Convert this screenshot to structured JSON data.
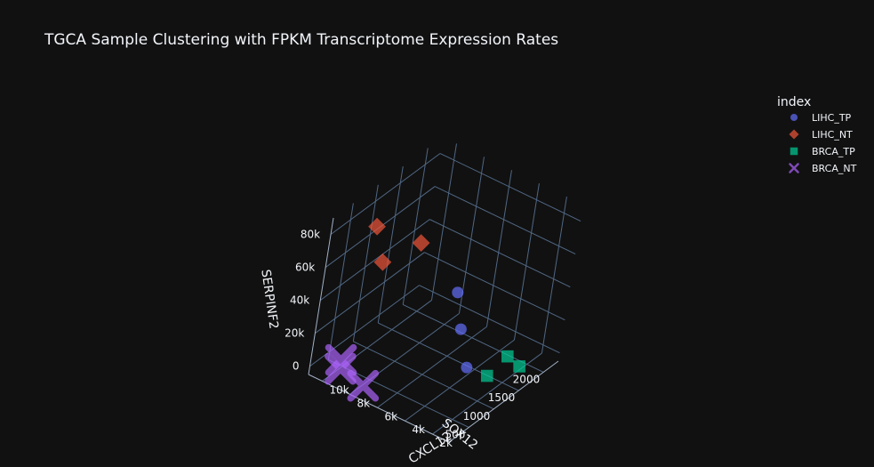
{
  "chart_data": {
    "type": "scatter3d",
    "title": "TGCA Sample Clustering with FPKM Transcriptome Expression Rates",
    "axes": {
      "x": {
        "label": "CXCL12",
        "ticks": [
          2000,
          4000,
          6000,
          8000,
          10000
        ],
        "tick_labels": [
          "2k",
          "4k",
          "6k",
          "8k",
          "10k"
        ],
        "range": [
          800,
          11000
        ]
      },
      "y": {
        "label": "SOX12",
        "ticks": [
          500,
          1000,
          1500,
          2000
        ],
        "tick_labels": [
          "500",
          "1000",
          "1500",
          "2000"
        ],
        "range": [
          100,
          2300
        ]
      },
      "z": {
        "label": "SERPINF2",
        "ticks": [
          0,
          20000,
          40000,
          60000,
          80000
        ],
        "tick_labels": [
          "0",
          "20k",
          "40k",
          "60k",
          "80k"
        ],
        "range": [
          -5000,
          90000
        ]
      }
    },
    "legend": {
      "title": "index",
      "placement": "top-right"
    },
    "series": [
      {
        "name": "LIHC_TP",
        "symbol": "circle",
        "color": "#636efa",
        "points": [
          {
            "x": 1000,
            "y": 300,
            "z": 35000
          },
          {
            "x": 1800,
            "y": 300,
            "z": 55000
          },
          {
            "x": 3000,
            "y": 500,
            "z": 68000
          }
        ]
      },
      {
        "name": "LIHC_NT",
        "symbol": "diamond",
        "color": "#EF553B",
        "points": [
          {
            "x": 9000,
            "y": 450,
            "z": 85000
          },
          {
            "x": 6000,
            "y": 500,
            "z": 86000
          },
          {
            "x": 7500,
            "y": 200,
            "z": 75000
          }
        ]
      },
      {
        "name": "BRCA_TP",
        "symbol": "square",
        "color": "#00cc96",
        "points": [
          {
            "x": 2200,
            "y": 1200,
            "z": 5000
          },
          {
            "x": 1600,
            "y": 1700,
            "z": 2000
          },
          {
            "x": 2800,
            "y": 1800,
            "z": 1000
          }
        ]
      },
      {
        "name": "BRCA_NT",
        "symbol": "x",
        "color": "#ab63fa",
        "points": [
          {
            "x": 9500,
            "y": 300,
            "z": 0
          },
          {
            "x": 10000,
            "y": 450,
            "z": 0
          },
          {
            "x": 7500,
            "y": 200,
            "z": 0
          }
        ]
      }
    ]
  }
}
